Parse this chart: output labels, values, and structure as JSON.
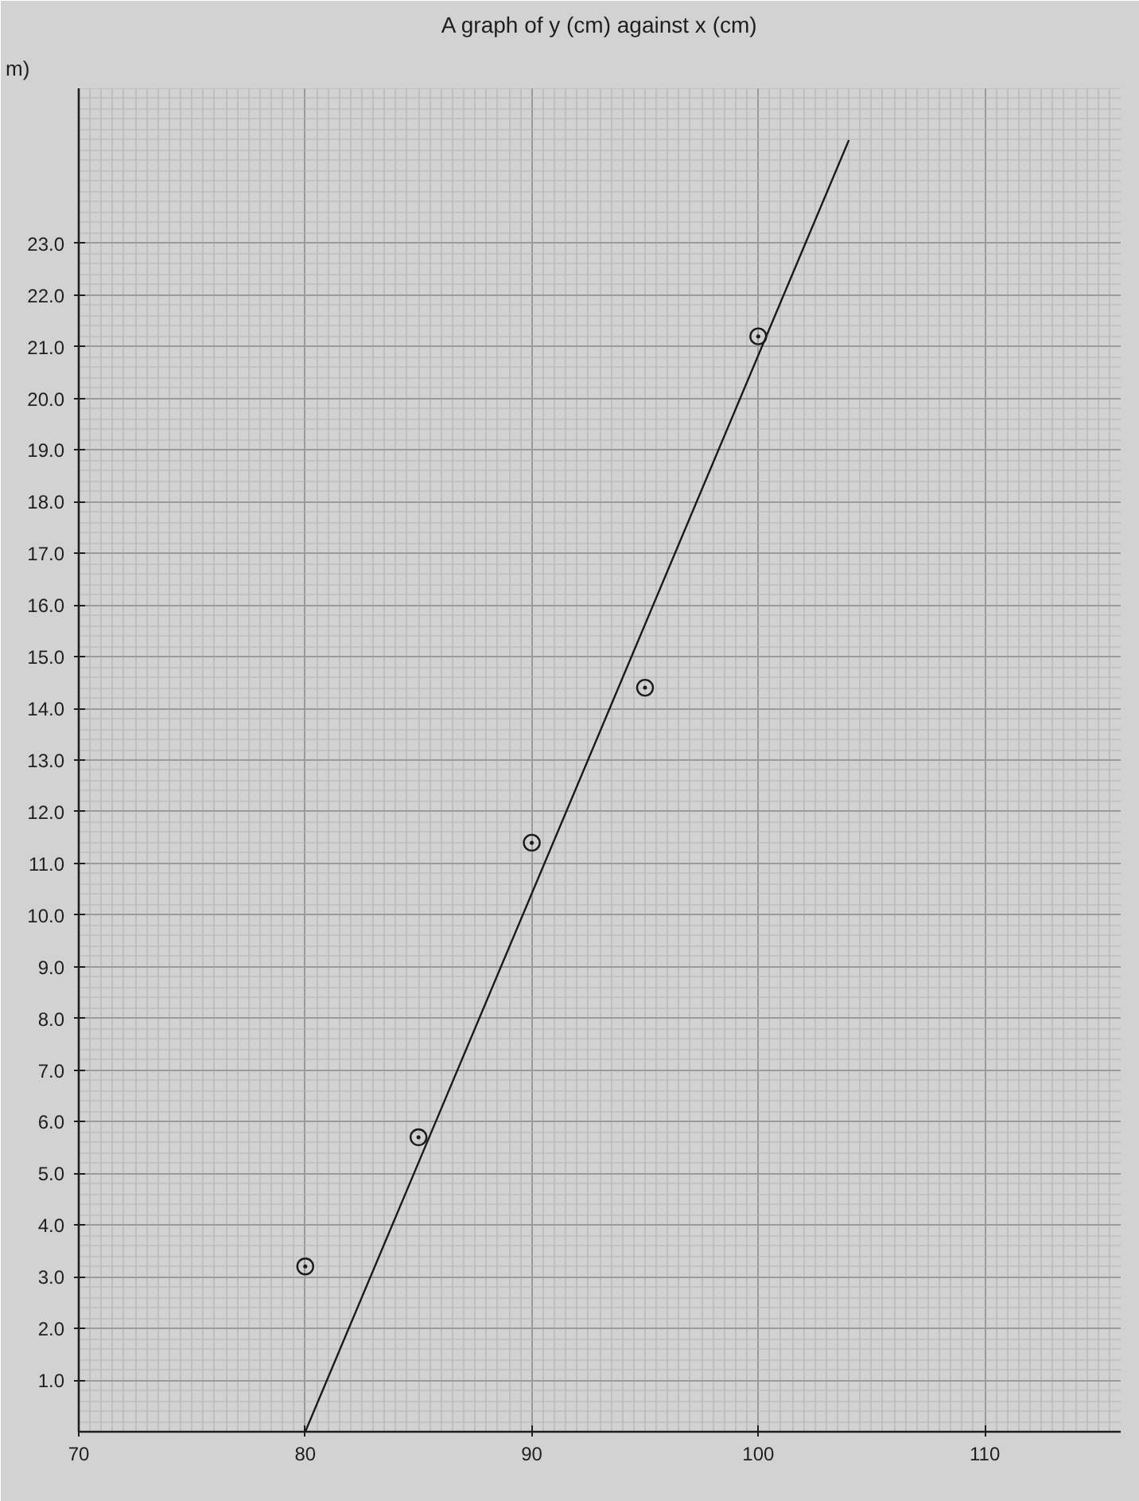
{
  "chart_data": {
    "type": "scatter",
    "title": "A graph of y (cm) against x (cm)",
    "ylabel": "m)",
    "xlim": [
      70,
      116
    ],
    "ylim": [
      0,
      26
    ],
    "xticks": [
      70,
      80,
      90,
      100,
      110
    ],
    "yticks": [
      {
        "value": 1,
        "label": "1.0"
      },
      {
        "value": 2,
        "label": "2.0"
      },
      {
        "value": 3,
        "label": "3.0"
      },
      {
        "value": 4,
        "label": "4.0"
      },
      {
        "value": 5,
        "label": "5.0"
      },
      {
        "value": 6,
        "label": "6.0"
      },
      {
        "value": 7,
        "label": "7.0"
      },
      {
        "value": 8,
        "label": "8.0"
      },
      {
        "value": 9,
        "label": "9.0"
      },
      {
        "value": 10,
        "label": "10.0"
      },
      {
        "value": 11,
        "label": "11.0"
      },
      {
        "value": 12,
        "label": "12.0"
      },
      {
        "value": 13,
        "label": "13.0"
      },
      {
        "value": 14,
        "label": "14.0"
      },
      {
        "value": 15,
        "label": "15.0"
      },
      {
        "value": 16,
        "label": "16.0"
      },
      {
        "value": 17,
        "label": "17.0"
      },
      {
        "value": 18,
        "label": "18.0"
      },
      {
        "value": 19,
        "label": "19.0"
      },
      {
        "value": 20,
        "label": "20.0"
      },
      {
        "value": 21,
        "label": "21.0"
      },
      {
        "value": 22,
        "label": "22.0"
      },
      {
        "value": 23,
        "label": "23.0"
      }
    ],
    "grid": true,
    "series": [
      {
        "color": "#1a1a1a",
        "marker": "circle",
        "x": [
          80,
          85,
          90,
          95,
          100
        ],
        "values": [
          3.2,
          5.7,
          11.4,
          14.4,
          21.2
        ]
      },
      {
        "type": "line",
        "color": "#1a1a1a",
        "x": [
          80,
          104
        ],
        "values": [
          0,
          25.0
        ]
      }
    ]
  }
}
